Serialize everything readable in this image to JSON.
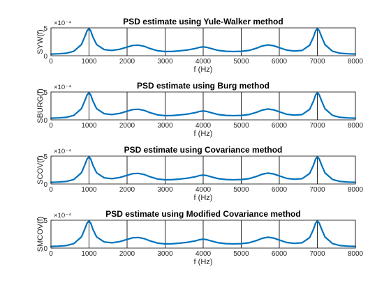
{
  "chart_data": [
    {
      "type": "line",
      "title": "PSD estimate using Yule-Walker method",
      "xlabel": "f (Hz)",
      "ylabel": "SYW(f)",
      "exponent_label": "×10⁻⁴",
      "xlim": [
        0,
        8000
      ],
      "ylim": [
        0,
        5
      ],
      "xticks": [
        "0",
        "1000",
        "2000",
        "3000",
        "4000",
        "5000",
        "6000",
        "7000",
        "8000"
      ],
      "yticks": [
        "0",
        "5"
      ],
      "grid": "x-only",
      "series": [
        {
          "color": "#0072bd",
          "x": [
            0,
            200,
            400,
            600,
            800,
            900,
            950,
            1000,
            1050,
            1100,
            1200,
            1400,
            1600,
            1800,
            2000,
            2150,
            2300,
            2450,
            2600,
            2800,
            3000,
            3200,
            3400,
            3600,
            3800,
            3900,
            4000,
            4100,
            4200,
            4400,
            4600,
            4800,
            5000,
            5200,
            5400,
            5550,
            5700,
            5850,
            6000,
            6200,
            6400,
            6600,
            6800,
            6900,
            6950,
            7000,
            7050,
            7100,
            7200,
            7400,
            7600,
            7800,
            8000
          ],
          "y": [
            0.3,
            0.35,
            0.45,
            0.8,
            2.0,
            3.6,
            4.5,
            4.9,
            4.4,
            3.4,
            2.0,
            1.1,
            0.95,
            1.15,
            1.55,
            1.85,
            1.9,
            1.7,
            1.3,
            0.9,
            0.75,
            0.78,
            0.9,
            1.05,
            1.3,
            1.5,
            1.6,
            1.5,
            1.3,
            0.95,
            0.8,
            0.76,
            0.8,
            0.95,
            1.35,
            1.75,
            1.95,
            1.8,
            1.45,
            1.0,
            0.85,
            0.95,
            1.9,
            3.4,
            4.4,
            4.9,
            4.5,
            3.6,
            2.0,
            0.8,
            0.45,
            0.35,
            0.3
          ]
        }
      ]
    },
    {
      "type": "line",
      "title": "PSD estimate using Burg method",
      "xlabel": "f (Hz)",
      "ylabel": "SBURG(f)",
      "exponent_label": "×10⁻⁴",
      "xlim": [
        0,
        8000
      ],
      "ylim": [
        0,
        5
      ],
      "xticks": [
        "0",
        "1000",
        "2000",
        "3000",
        "4000",
        "5000",
        "6000",
        "7000",
        "8000"
      ],
      "yticks": [
        "0",
        "5"
      ],
      "grid": "x-only",
      "series": [
        {
          "color": "#0072bd",
          "x": [
            0,
            200,
            400,
            600,
            800,
            900,
            950,
            1000,
            1050,
            1100,
            1200,
            1400,
            1600,
            1800,
            2000,
            2150,
            2300,
            2450,
            2600,
            2800,
            3000,
            3200,
            3400,
            3600,
            3800,
            3900,
            4000,
            4100,
            4200,
            4400,
            4600,
            4800,
            5000,
            5200,
            5400,
            5550,
            5700,
            5850,
            6000,
            6200,
            6400,
            6600,
            6800,
            6900,
            6950,
            7000,
            7050,
            7100,
            7200,
            7400,
            7600,
            7800,
            8000
          ],
          "y": [
            0.3,
            0.35,
            0.45,
            0.8,
            2.0,
            3.6,
            4.5,
            4.9,
            4.4,
            3.4,
            2.0,
            1.1,
            0.95,
            1.15,
            1.55,
            1.85,
            1.9,
            1.7,
            1.3,
            0.9,
            0.75,
            0.78,
            0.9,
            1.05,
            1.3,
            1.5,
            1.6,
            1.5,
            1.3,
            0.95,
            0.8,
            0.76,
            0.8,
            0.95,
            1.35,
            1.75,
            1.95,
            1.8,
            1.45,
            1.0,
            0.85,
            0.95,
            1.9,
            3.4,
            4.4,
            4.9,
            4.5,
            3.6,
            2.0,
            0.8,
            0.45,
            0.35,
            0.3
          ]
        }
      ]
    },
    {
      "type": "line",
      "title": "PSD estimate using Covariance method",
      "xlabel": "f (Hz)",
      "ylabel": "SCOV(f)",
      "exponent_label": "×10⁻⁴",
      "xlim": [
        0,
        8000
      ],
      "ylim": [
        0,
        5
      ],
      "xticks": [
        "0",
        "1000",
        "2000",
        "3000",
        "4000",
        "5000",
        "6000",
        "7000",
        "8000"
      ],
      "yticks": [
        "0",
        "5"
      ],
      "grid": "x-only",
      "series": [
        {
          "color": "#0072bd",
          "x": [
            0,
            200,
            400,
            600,
            800,
            900,
            950,
            1000,
            1050,
            1100,
            1200,
            1400,
            1600,
            1800,
            2000,
            2150,
            2300,
            2450,
            2600,
            2800,
            3000,
            3200,
            3400,
            3600,
            3800,
            3900,
            4000,
            4100,
            4200,
            4400,
            4600,
            4800,
            5000,
            5200,
            5400,
            5550,
            5700,
            5850,
            6000,
            6200,
            6400,
            6600,
            6800,
            6900,
            6950,
            7000,
            7050,
            7100,
            7200,
            7400,
            7600,
            7800,
            8000
          ],
          "y": [
            0.3,
            0.35,
            0.45,
            0.8,
            2.0,
            3.6,
            4.5,
            4.9,
            4.4,
            3.4,
            2.0,
            1.1,
            0.95,
            1.15,
            1.55,
            1.85,
            1.9,
            1.7,
            1.3,
            0.9,
            0.75,
            0.78,
            0.9,
            1.05,
            1.3,
            1.5,
            1.6,
            1.5,
            1.3,
            0.95,
            0.8,
            0.76,
            0.8,
            0.95,
            1.35,
            1.75,
            1.95,
            1.8,
            1.45,
            1.0,
            0.85,
            0.95,
            1.9,
            3.4,
            4.4,
            4.9,
            4.5,
            3.6,
            2.0,
            0.8,
            0.45,
            0.35,
            0.3
          ]
        }
      ]
    },
    {
      "type": "line",
      "title": "PSD estimate using Modified Covariance method",
      "xlabel": "f (Hz)",
      "ylabel": "SMCOV(f)",
      "exponent_label": "×10⁻⁴",
      "xlim": [
        0,
        8000
      ],
      "ylim": [
        0,
        5
      ],
      "xticks": [
        "0",
        "1000",
        "2000",
        "3000",
        "4000",
        "5000",
        "6000",
        "7000",
        "8000"
      ],
      "yticks": [
        "0",
        "5"
      ],
      "grid": "x-only",
      "series": [
        {
          "color": "#0072bd",
          "x": [
            0,
            200,
            400,
            600,
            800,
            900,
            950,
            1000,
            1050,
            1100,
            1200,
            1400,
            1600,
            1800,
            2000,
            2150,
            2300,
            2450,
            2600,
            2800,
            3000,
            3200,
            3400,
            3600,
            3800,
            3900,
            4000,
            4100,
            4200,
            4400,
            4600,
            4800,
            5000,
            5200,
            5400,
            5550,
            5700,
            5850,
            6000,
            6200,
            6400,
            6600,
            6800,
            6900,
            6950,
            7000,
            7050,
            7100,
            7200,
            7400,
            7600,
            7800,
            8000
          ],
          "y": [
            0.3,
            0.35,
            0.45,
            0.8,
            2.0,
            3.6,
            4.5,
            4.9,
            4.4,
            3.4,
            2.0,
            1.1,
            0.95,
            1.15,
            1.55,
            1.85,
            1.9,
            1.7,
            1.3,
            0.9,
            0.75,
            0.78,
            0.9,
            1.05,
            1.3,
            1.5,
            1.6,
            1.5,
            1.3,
            0.95,
            0.8,
            0.76,
            0.8,
            0.95,
            1.35,
            1.75,
            1.95,
            1.8,
            1.45,
            1.0,
            0.85,
            0.95,
            1.9,
            3.4,
            4.4,
            4.9,
            4.5,
            3.6,
            2.0,
            0.8,
            0.45,
            0.35,
            0.3
          ]
        }
      ]
    }
  ]
}
